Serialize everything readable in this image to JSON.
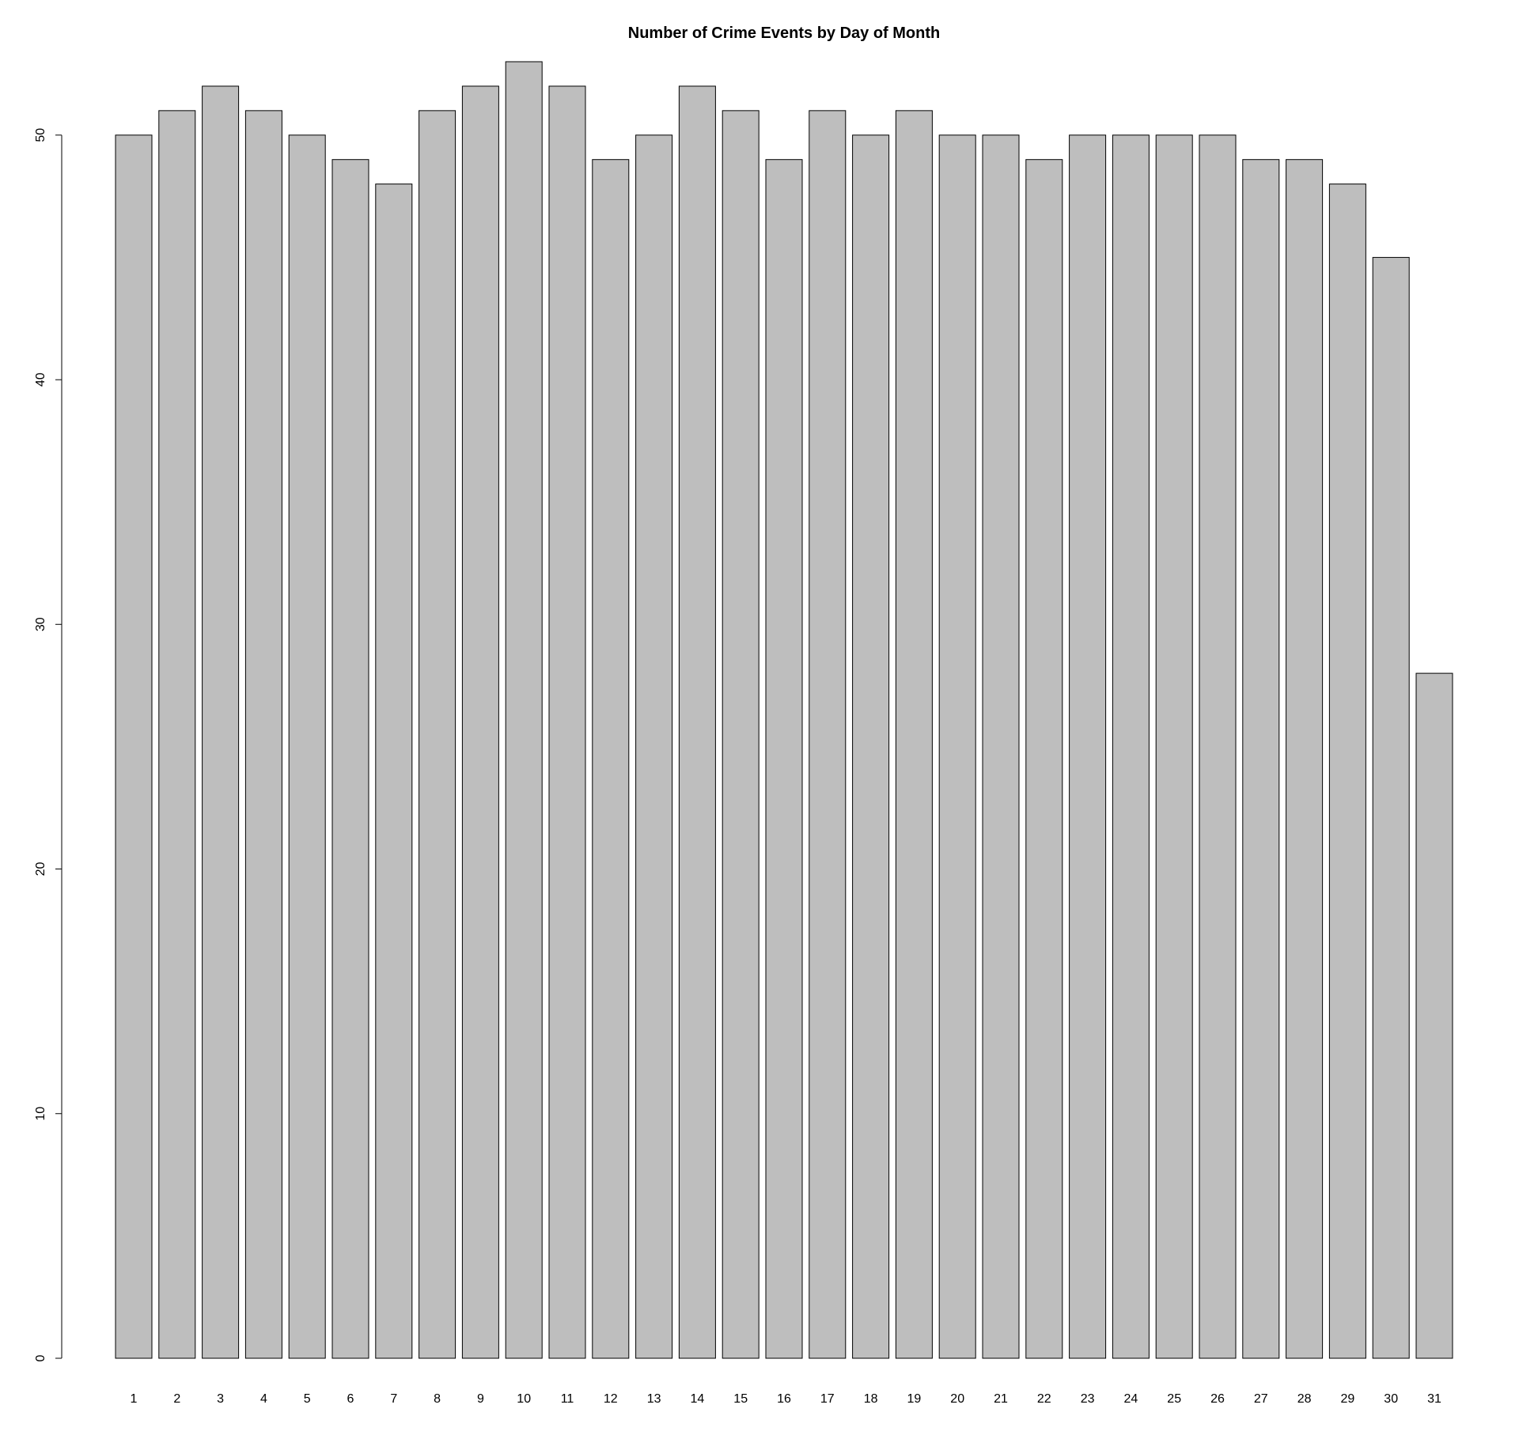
{
  "chart_data": {
    "type": "bar",
    "title": "Number of Crime Events by Day of Month",
    "xlabel": "",
    "ylabel": "",
    "categories": [
      "1",
      "2",
      "3",
      "4",
      "5",
      "6",
      "7",
      "8",
      "9",
      "10",
      "11",
      "12",
      "13",
      "14",
      "15",
      "16",
      "17",
      "18",
      "19",
      "20",
      "21",
      "22",
      "23",
      "24",
      "25",
      "26",
      "27",
      "28",
      "29",
      "30",
      "31"
    ],
    "values": [
      50,
      51,
      52,
      51,
      50,
      49,
      48,
      51,
      52,
      53,
      52,
      49,
      50,
      52,
      51,
      49,
      51,
      50,
      51,
      50,
      50,
      49,
      50,
      50,
      50,
      50,
      49,
      49,
      48,
      45,
      28
    ],
    "ylim": [
      0,
      53
    ],
    "yticks": [
      0,
      10,
      20,
      30,
      40,
      50
    ],
    "grid": false,
    "bar_color": "#bebebe",
    "bar_border_color": "#000000"
  }
}
